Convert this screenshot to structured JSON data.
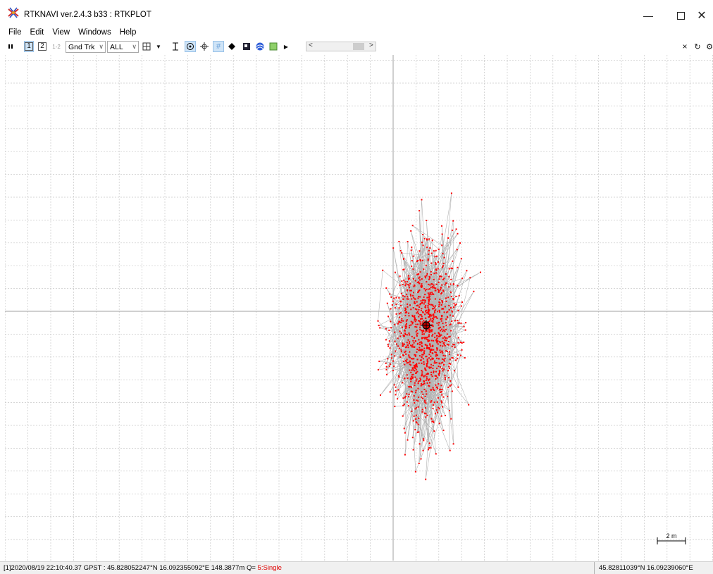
{
  "window": {
    "title": "RTKNAVI ver.2.4.3 b33 : RTKPLOT",
    "minimize_icon": "minimize-icon",
    "maximize_icon": "maximize-icon",
    "close_icon": "close-icon"
  },
  "menu": [
    "File",
    "Edit",
    "View",
    "Windows",
    "Help"
  ],
  "toolbar": {
    "btn1": "1",
    "btn2": "2",
    "btn12": "1-2",
    "plot_type": "Gnd Trk",
    "sat_filter": "ALL"
  },
  "plot": {
    "scale_label": "2 m",
    "grid": true,
    "crosshair": true,
    "colors": {
      "points": "#ff0000",
      "track": "#b4b4b4",
      "grid": "#c8c8c8",
      "axis": "#a0a0a0"
    }
  },
  "status": {
    "left": "[1]2020/08/19 22:10:40.37 GPST : 45.828052247°N 16.092355092°E 148.3877m Q=",
    "quality": "5:Single",
    "right": "45.82811039°N 16.09239060°E"
  }
}
